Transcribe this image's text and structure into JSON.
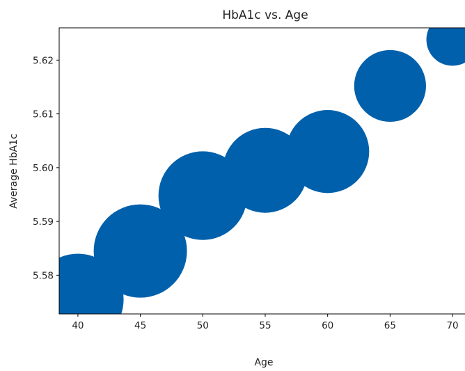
{
  "chart_data": {
    "type": "scatter",
    "title": "HbA1c vs. Age",
    "xlabel": "Age",
    "ylabel": "Average HbA1c",
    "xlim": [
      38.5,
      71
    ],
    "ylim": [
      5.5728,
      5.626
    ],
    "xticks": [
      40,
      45,
      50,
      55,
      60,
      65,
      70
    ],
    "yticks": [
      5.58,
      5.59,
      5.6,
      5.61,
      5.62
    ],
    "ytick_labels": [
      "5.58",
      "5.59",
      "5.60",
      "5.61",
      "5.62"
    ],
    "grid": false,
    "marker_color": "#0060ab",
    "points": [
      {
        "x": 40,
        "y": 5.5755,
        "size": 0.98
      },
      {
        "x": 45,
        "y": 5.5845,
        "size": 1.0
      },
      {
        "x": 50,
        "y": 5.5948,
        "size": 0.95
      },
      {
        "x": 55,
        "y": 5.5995,
        "size": 0.91
      },
      {
        "x": 60,
        "y": 5.603,
        "size": 0.89
      },
      {
        "x": 65,
        "y": 5.6152,
        "size": 0.77
      },
      {
        "x": 70,
        "y": 5.6238,
        "size": 0.56
      }
    ]
  }
}
